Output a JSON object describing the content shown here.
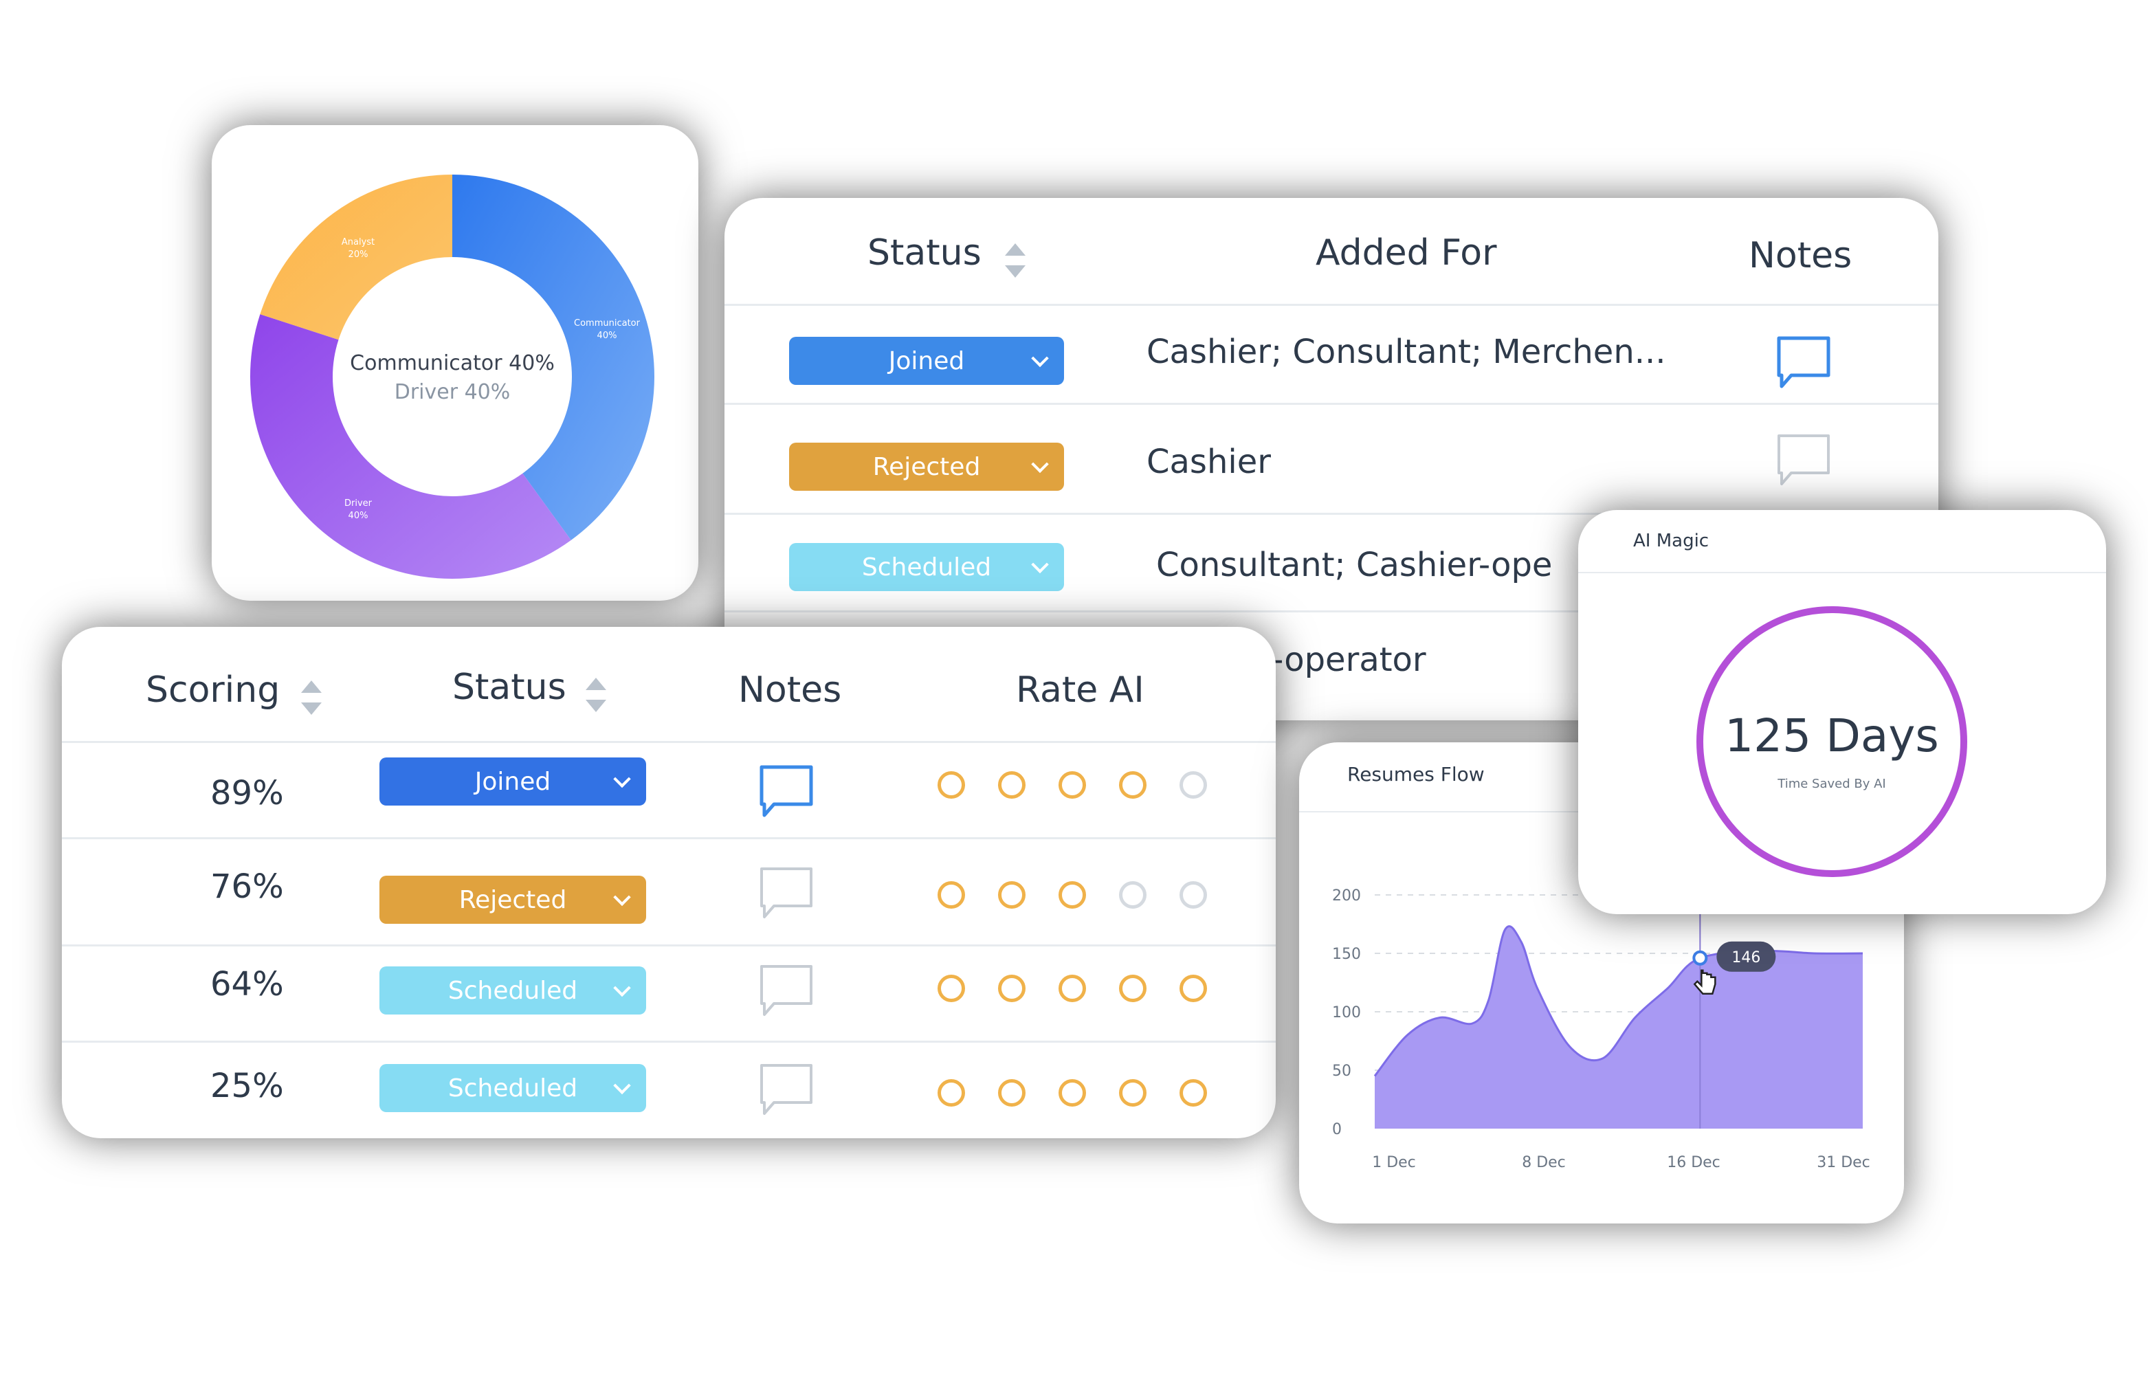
{
  "colors": {
    "joined": "#3d7ee6",
    "rejected": "#e0a23e",
    "scheduled": "#86dcf3",
    "ring_on": "#f0b24a",
    "ring_off": "#d5dae0",
    "donut_blue": "#4a8ef0",
    "donut_purple": "#a66cf0",
    "donut_orange": "#fdb94c",
    "area_fill": "#a899f3",
    "ai_ring": "#b44fd8"
  },
  "donut": {
    "center_line1": "Communicator 40%",
    "center_line2": "Driver 40%",
    "segments": [
      {
        "name": "Communicator",
        "percent": 40,
        "label": "Communicator",
        "pct_label": "40%"
      },
      {
        "name": "Driver",
        "percent": 40,
        "label": "Driver",
        "pct_label": "40%"
      },
      {
        "name": "Analyst",
        "percent": 20,
        "label": "Analyst",
        "pct_label": "20%"
      }
    ]
  },
  "back_table": {
    "headers": {
      "status": "Status",
      "added_for": "Added For",
      "notes": "Notes"
    },
    "rows": [
      {
        "status": "Joined",
        "status_type": "joined",
        "added_for": "Cashier; Consultant; Merchen...",
        "note_active": true
      },
      {
        "status": "Rejected",
        "status_type": "rejected",
        "added_for": "Cashier",
        "note_active": false
      },
      {
        "status": "Scheduled",
        "status_type": "scheduled",
        "added_for": "Consultant; Cashier-ope",
        "note_active": false
      },
      {
        "added_for": "-operator"
      }
    ]
  },
  "front_table": {
    "headers": {
      "scoring": "Scoring",
      "status": "Status",
      "notes": "Notes",
      "rate_ai": "Rate AI"
    },
    "rows": [
      {
        "score": "89%",
        "status": "Joined",
        "status_type": "joined",
        "note_active": true,
        "rating": 4
      },
      {
        "score": "76%",
        "status": "Rejected",
        "status_type": "rejected",
        "note_active": false,
        "rating": 3
      },
      {
        "score": "64%",
        "status": "Scheduled",
        "status_type": "scheduled",
        "note_active": false,
        "rating": 5
      },
      {
        "score": "25%",
        "status": "Scheduled",
        "status_type": "scheduled",
        "note_active": false,
        "rating": 5
      }
    ]
  },
  "ai_magic": {
    "title": "AI Magic",
    "value": "125 Days",
    "caption": "Time Saved By AI"
  },
  "resumes_flow": {
    "title": "Resumes Flow",
    "tooltip": "146"
  },
  "chart_data": {
    "type": "area",
    "title": "Resumes Flow",
    "x": [
      0,
      2,
      4,
      6,
      7,
      8,
      9,
      10,
      12,
      14,
      16,
      18,
      20,
      24,
      27,
      30
    ],
    "values": [
      45,
      80,
      95,
      90,
      110,
      170,
      160,
      120,
      70,
      60,
      95,
      120,
      146,
      152,
      150,
      150
    ],
    "x_ticks": [
      "1 Dec",
      "8 Dec",
      "16 Dec",
      "31 Dec"
    ],
    "y_ticks": [
      "0",
      "50",
      "100",
      "150",
      "200"
    ],
    "ylim": [
      0,
      200
    ],
    "grid": true,
    "highlight_value": 146
  }
}
